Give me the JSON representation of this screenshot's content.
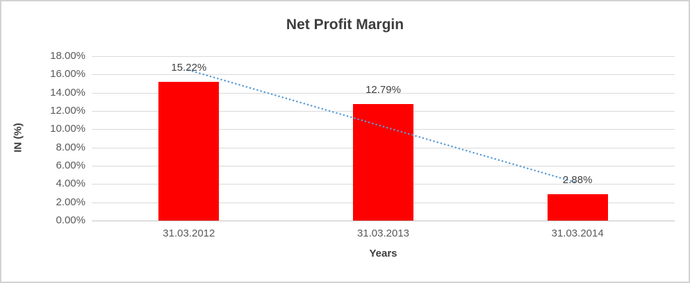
{
  "chart_data": {
    "type": "bar",
    "title": "Net Profit Margin",
    "xlabel": "Years",
    "ylabel": "IN (%)",
    "categories": [
      "31.03.2012",
      "31.03.2013",
      "31.03.2014"
    ],
    "series": [
      {
        "name": "Net Profit Margin",
        "values": [
          15.22,
          12.79,
          2.88
        ]
      }
    ],
    "data_labels": [
      "15.22%",
      "12.79%",
      "2.88%"
    ],
    "ylim": [
      0,
      18
    ],
    "ytick_step": 2,
    "ytick_labels": [
      "18.00%",
      "16.00%",
      "14.00%",
      "12.00%",
      "10.00%",
      "8.00%",
      "6.00%",
      "4.00%",
      "2.00%",
      "0.00%"
    ],
    "grid": true,
    "legend": "none",
    "bar_color": "#ff0000",
    "trendline": {
      "type": "linear",
      "style": "dotted",
      "color": "#5b9bd5",
      "start_value": 16.47,
      "end_value": 4.13
    }
  },
  "frame": {
    "background": "#ffffff",
    "border_color": "#d2d2d2",
    "gridline_color": "#d9d9d9",
    "axis_line_color": "#c3c3c3",
    "text_color": "#595959",
    "title_color": "#3d3d3d"
  }
}
